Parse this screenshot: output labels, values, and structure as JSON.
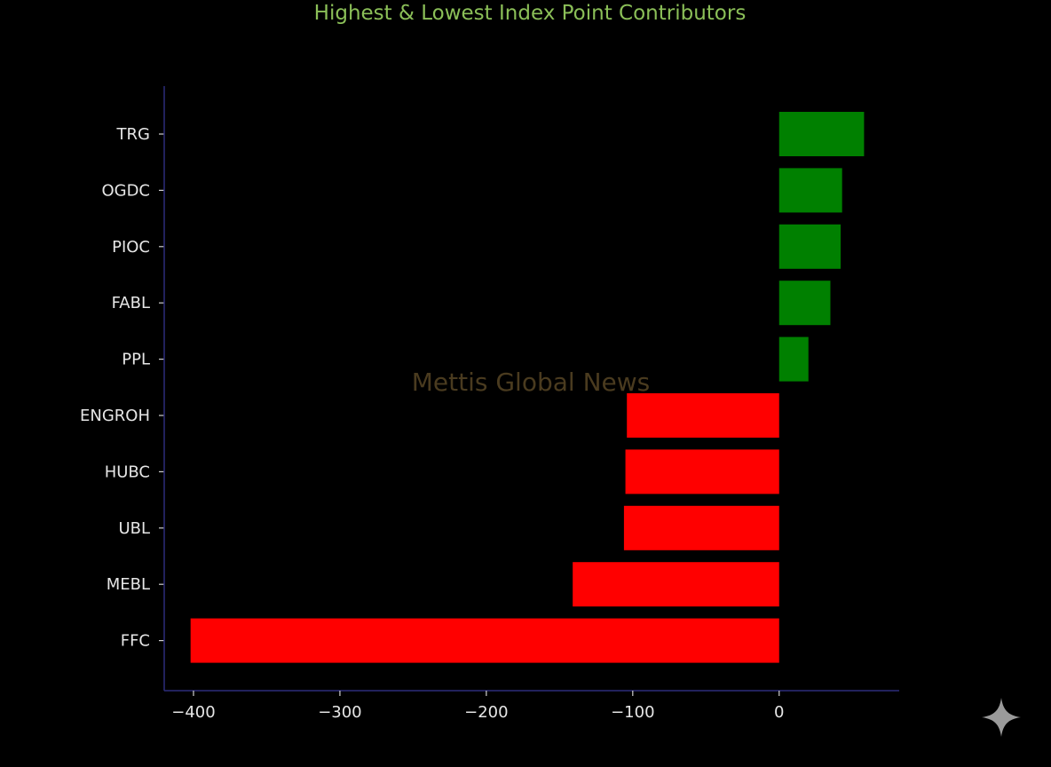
{
  "chart_data": {
    "type": "bar",
    "orientation": "horizontal",
    "title": "Highest & Lowest Index Point Contributors",
    "xlabel": "",
    "ylabel": "",
    "categories": [
      "TRG",
      "OGDC",
      "PIOC",
      "FABL",
      "PPL",
      "ENGROH",
      "HUBC",
      "UBL",
      "MEBL",
      "FFC"
    ],
    "values": [
      58,
      43,
      42,
      35,
      20,
      -104,
      -105,
      -106,
      -141,
      -402
    ],
    "xlim": [
      -420,
      82
    ],
    "xticks": [
      -400,
      -300,
      -200,
      -100,
      0
    ],
    "xtick_labels": [
      "−400",
      "−300",
      "−200",
      "−100",
      "0"
    ],
    "grid": false,
    "legend": "none",
    "positive_color": "#008000",
    "negative_color": "#ff0000",
    "axis_color": "#2c2c7a",
    "watermark": "Mettis Global News"
  },
  "colors": {
    "background": "#000000",
    "title": "#8bbf58",
    "tick_text": "#e6e6e6",
    "watermark": "#4a3b1f"
  },
  "icons": {
    "corner": "sparkle-icon"
  }
}
